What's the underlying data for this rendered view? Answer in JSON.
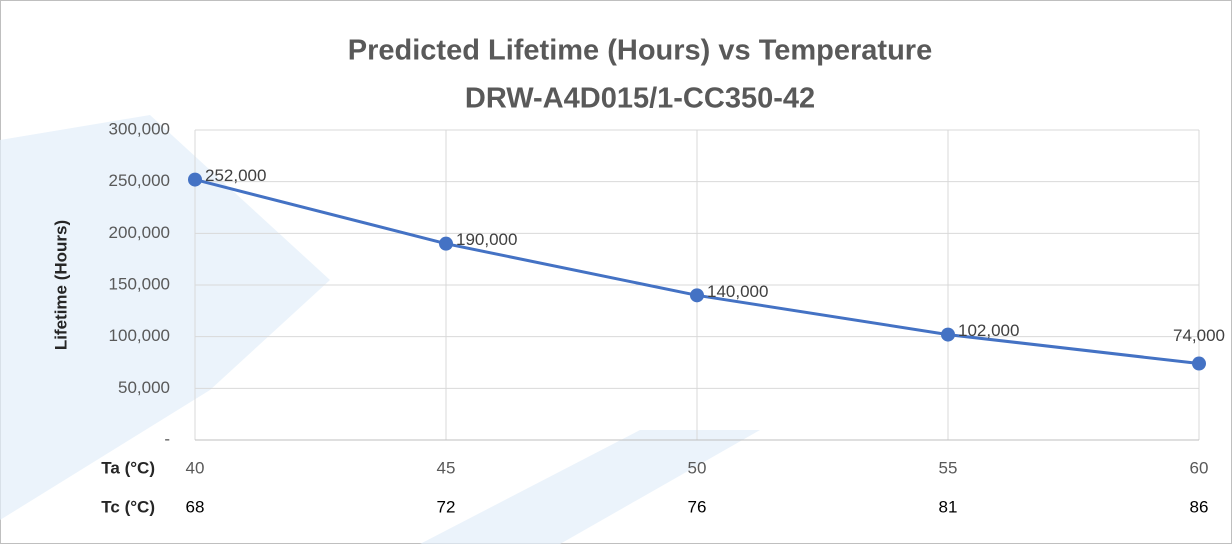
{
  "chart_data": {
    "type": "line",
    "title": "Predicted Lifetime (Hours) vs Temperature",
    "subtitle": "DRW-A4D015/1-CC350-42",
    "y_label": "Lifetime (Hours)",
    "x_label": "Ta (°C)",
    "x": [
      40,
      45,
      50,
      55,
      60
    ],
    "secondary_x": {
      "label": "Tc (°C)",
      "values": [
        68,
        72,
        76,
        81,
        86
      ]
    },
    "series": [
      {
        "name": "Lifetime",
        "color": "#4472c4",
        "values": [
          252000,
          190000,
          140000,
          102000,
          74000
        ],
        "value_labels": [
          "252,000",
          "190,000",
          "140,000",
          "102,000",
          "74,000"
        ]
      }
    ],
    "xlim": [
      40,
      60
    ],
    "xticks": [
      40,
      45,
      50,
      55,
      60
    ],
    "ylim": [
      0,
      300000
    ],
    "yticks": [
      {
        "value": 0,
        "label": "-"
      },
      {
        "value": 50000,
        "label": "50,000"
      },
      {
        "value": 100000,
        "label": "100,000"
      },
      {
        "value": 150000,
        "label": "150,000"
      },
      {
        "value": 200000,
        "label": "200,000"
      },
      {
        "value": 250000,
        "label": "250,000"
      },
      {
        "value": 300000,
        "label": "300,000"
      }
    ],
    "grid": true
  }
}
